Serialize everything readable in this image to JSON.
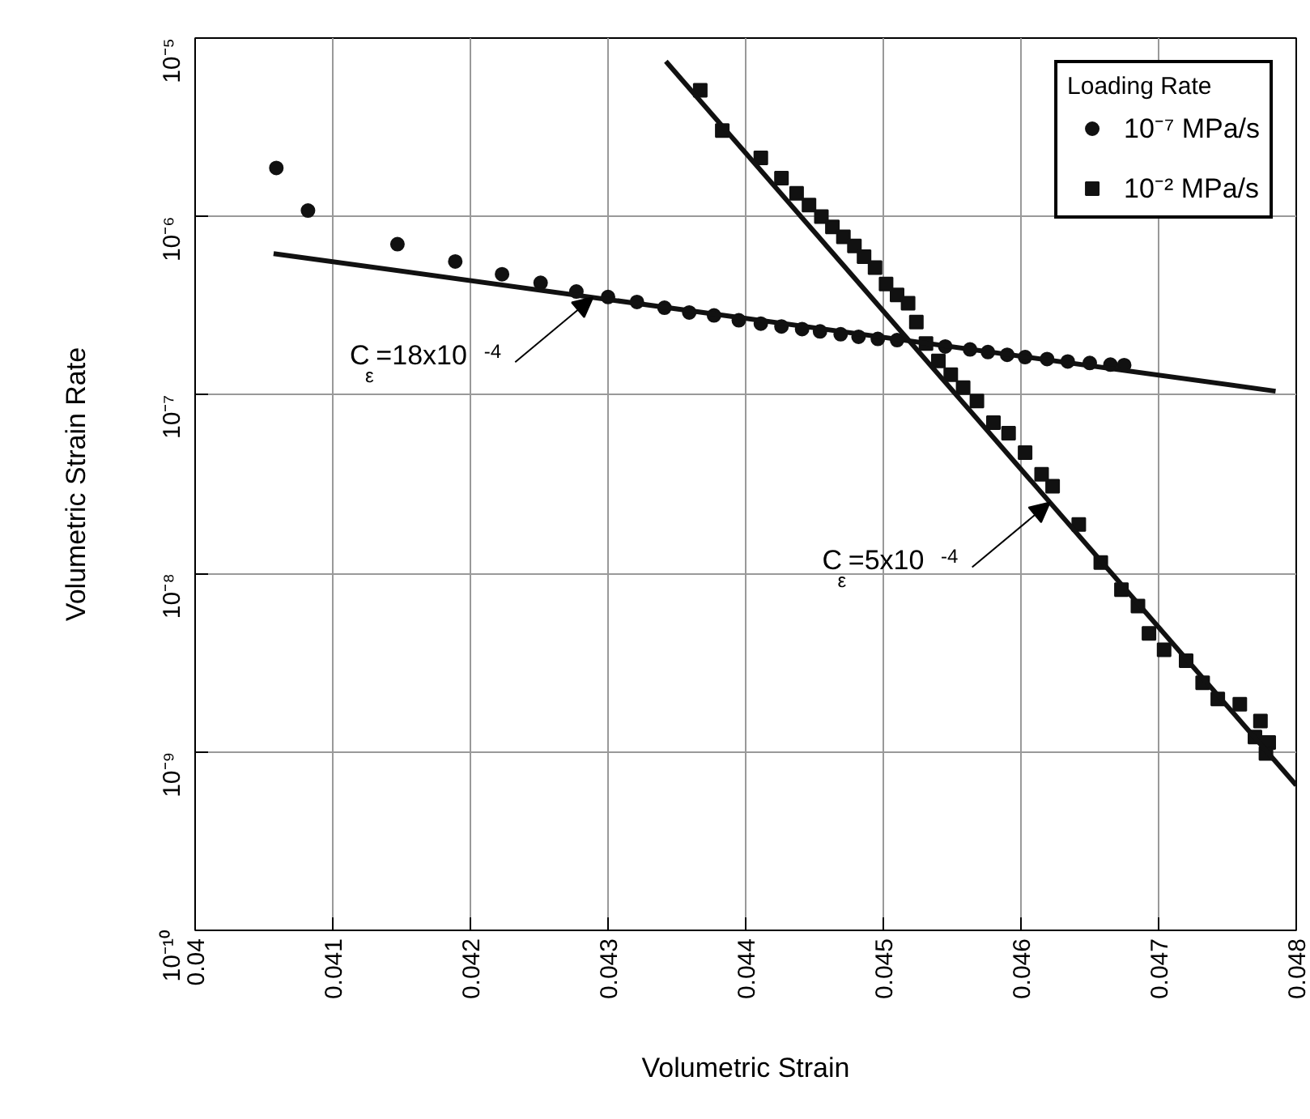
{
  "chart_data": {
    "type": "scatter",
    "xlabel": "Volumetric Strain",
    "ylabel": "Volumetric Strain Rate",
    "legend_title": "Loading Rate",
    "xlim": [
      0.04,
      0.048
    ],
    "xticks": [
      0.04,
      0.041,
      0.042,
      0.043,
      0.044,
      0.045,
      0.046,
      0.047,
      0.048
    ],
    "ylim": [
      1e-10,
      1e-05
    ],
    "yticks": [
      {
        "value": 1e-10,
        "label": "10⁻¹⁰"
      },
      {
        "value": 1e-09,
        "label": "10⁻⁹"
      },
      {
        "value": 1e-08,
        "label": "10⁻⁸"
      },
      {
        "value": 1e-07,
        "label": "10⁻⁷"
      },
      {
        "value": 1e-06,
        "label": "10⁻⁶"
      },
      {
        "value": 1e-05,
        "label": "10⁻⁵"
      }
    ],
    "log": "y",
    "grid": true,
    "legend": "top right",
    "series": [
      {
        "name": "10⁻⁷ MPa/s",
        "color": "#111111",
        "marker": "circle",
        "x": [
          0.04059,
          0.04082,
          0.04147,
          0.04189,
          0.04223,
          0.04251,
          0.04277,
          0.043,
          0.04321,
          0.04341,
          0.04359,
          0.04377,
          0.04395,
          0.04411,
          0.04426,
          0.04441,
          0.04454,
          0.04469,
          0.04482,
          0.04496,
          0.0451,
          0.04545,
          0.04563,
          0.04576,
          0.0459,
          0.04603,
          0.04619,
          0.04634,
          0.0465,
          0.04665,
          0.04675
        ],
        "values": [
          1.87e-06,
          1.08e-06,
          7e-07,
          5.6e-07,
          4.75e-07,
          4.25e-07,
          3.8e-07,
          3.54e-07,
          3.32e-07,
          3.08e-07,
          2.9e-07,
          2.79e-07,
          2.62e-07,
          2.51e-07,
          2.42e-07,
          2.34e-07,
          2.27e-07,
          2.19e-07,
          2.12e-07,
          2.06e-07,
          2.03e-07,
          1.87e-07,
          1.8e-07,
          1.74e-07,
          1.68e-07,
          1.63e-07,
          1.59e-07,
          1.54e-07,
          1.51e-07,
          1.48e-07,
          1.47e-07
        ]
      },
      {
        "name": "10⁻² MPa/s",
        "color": "#111111",
        "marker": "square",
        "x": [
          0.04367,
          0.04383,
          0.04411,
          0.04426,
          0.04437,
          0.04446,
          0.04455,
          0.04463,
          0.04471,
          0.04479,
          0.04486,
          0.04494,
          0.04502,
          0.0451,
          0.04518,
          0.04524,
          0.04531,
          0.0454,
          0.04549,
          0.04558,
          0.04568,
          0.0458,
          0.04591,
          0.04603,
          0.04615,
          0.04623,
          0.04642,
          0.04658,
          0.04673,
          0.04685,
          0.04693,
          0.04704,
          0.0472,
          0.04732,
          0.04743,
          0.04759,
          0.04774,
          0.0478,
          0.04778,
          0.0477
        ],
        "values": [
          5.1e-06,
          3.03e-06,
          2.13e-06,
          1.64e-06,
          1.35e-06,
          1.16e-06,
          1e-06,
          8.75e-07,
          7.7e-07,
          6.84e-07,
          5.95e-07,
          5.17e-07,
          4.19e-07,
          3.64e-07,
          3.27e-07,
          2.56e-07,
          1.94e-07,
          1.55e-07,
          1.3e-07,
          1.1e-07,
          9.25e-08,
          7e-08,
          6.1e-08,
          4.75e-08,
          3.59e-08,
          3.08e-08,
          1.88e-08,
          1.15e-08,
          8.1e-09,
          6.56e-09,
          4.61e-09,
          3.73e-09,
          3.24e-09,
          2.44e-09,
          1.98e-09,
          1.85e-09,
          1.49e-09,
          1.13e-09,
          9.8e-10,
          1.21e-09
        ]
      },
      {
        "type": "line",
        "color": "#111111",
        "line_style": "solid",
        "x": [
          0.04057,
          0.04785
        ],
        "values": [
          6.2e-07,
          1.05e-07
        ]
      },
      {
        "type": "line",
        "color": "#111111",
        "line_style": "solid",
        "x": [
          0.04342,
          0.048
        ],
        "values": [
          7.4e-06,
          6.5e-10
        ]
      }
    ],
    "annotations": [
      {
        "text": "C$_{ε}$ =18x10$^{-4}$",
        "x": 0.04289,
        "y": 3.52e-07
      },
      {
        "text": "C$_{ε}$ =5x10$^{-4}$",
        "x": 0.04621,
        "y": 2.5e-08
      }
    ]
  }
}
